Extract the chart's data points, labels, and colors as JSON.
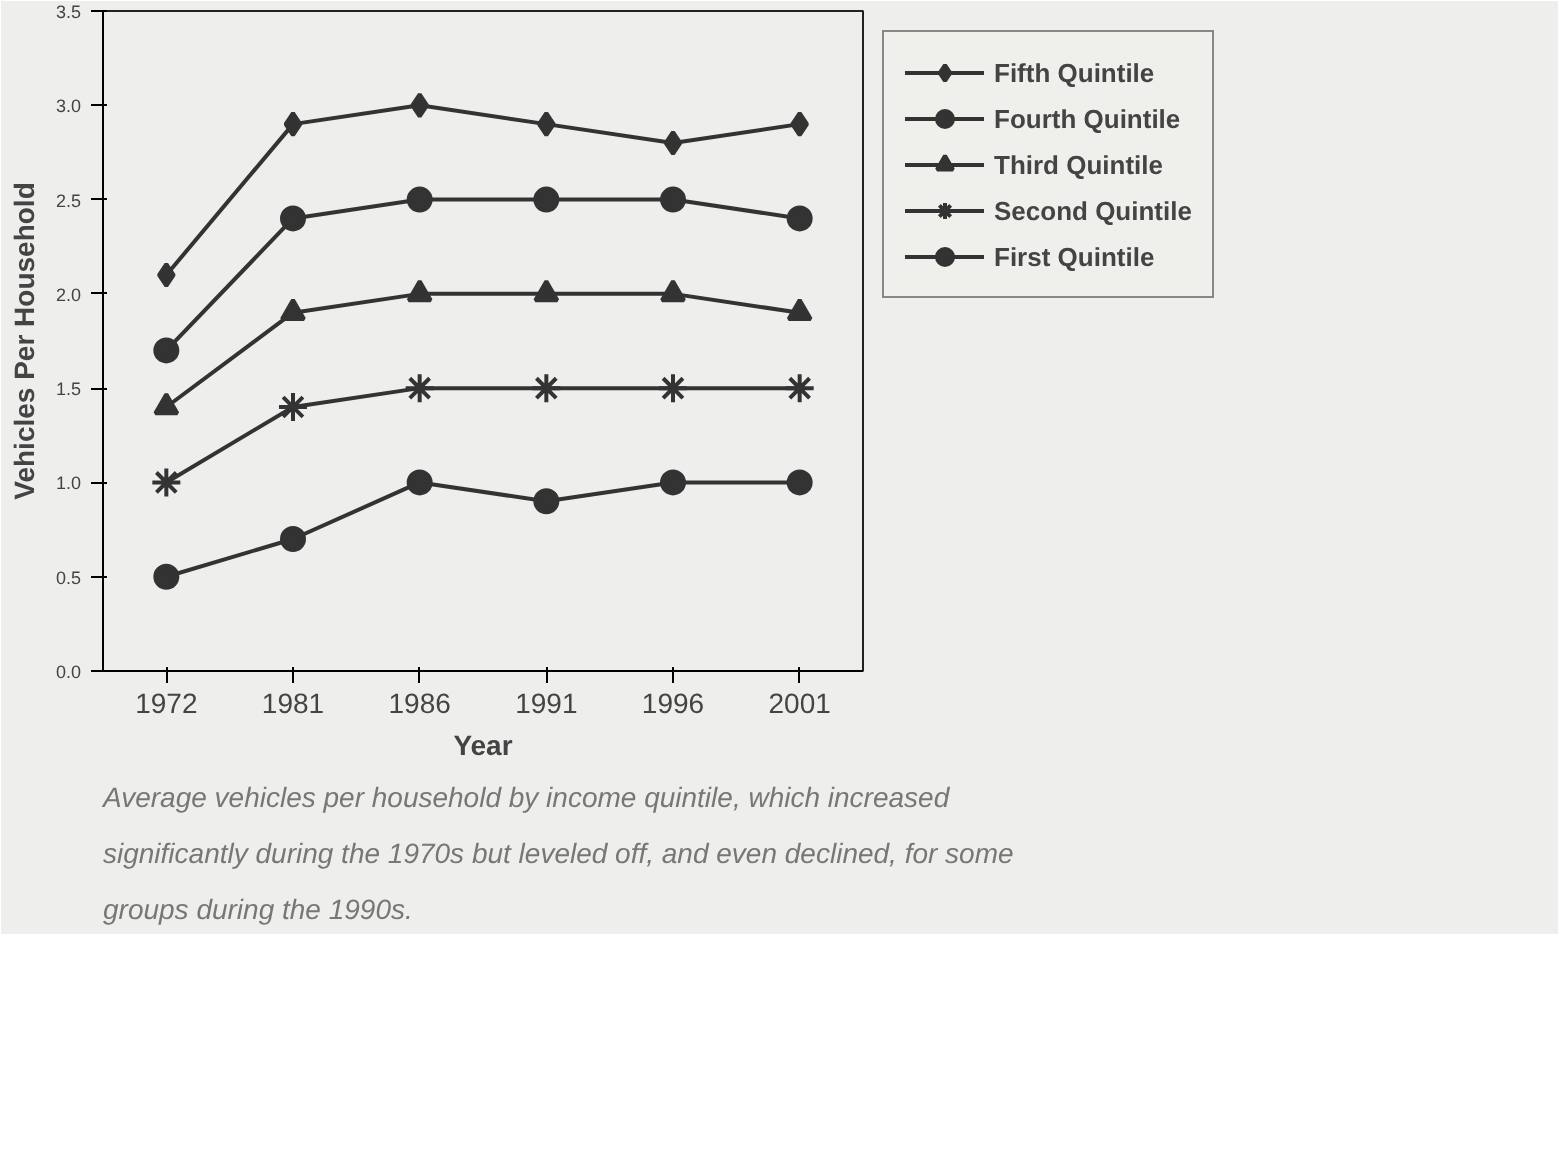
{
  "chart_data": {
    "type": "line",
    "xlabel": "Year",
    "ylabel": "Vehicles Per Household",
    "categories": [
      "1972",
      "1981",
      "1986",
      "1991",
      "1996",
      "2001"
    ],
    "ylim": [
      0,
      3.5
    ],
    "yticks": [
      {
        "value": 0,
        "label": "0.0"
      },
      {
        "value": 0.5,
        "label": "0.5"
      },
      {
        "value": 1,
        "label": "1.0"
      },
      {
        "value": 1.5,
        "label": "1.5"
      },
      {
        "value": 2,
        "label": "2.0"
      },
      {
        "value": 2.5,
        "label": "2.5"
      },
      {
        "value": 3,
        "label": "3.0"
      },
      {
        "value": 3.5,
        "label": "3.5"
      }
    ],
    "series": [
      {
        "name": "Fifth Quintile",
        "color": "#333333",
        "marker": "diamond",
        "values": [
          2.1,
          2.9,
          3.0,
          2.9,
          2.8,
          2.9
        ]
      },
      {
        "name": "Fourth Quintile",
        "color": "#333333",
        "marker": "circle",
        "values": [
          1.7,
          2.4,
          2.5,
          2.5,
          2.5,
          2.4
        ]
      },
      {
        "name": "Third Quintile",
        "color": "#333333",
        "marker": "triangle",
        "values": [
          1.4,
          1.9,
          2.0,
          2.0,
          2.0,
          1.9
        ]
      },
      {
        "name": "Second Quintile",
        "color": "#333333",
        "marker": "cross",
        "values": [
          1.0,
          1.4,
          1.5,
          1.5,
          1.5,
          1.5
        ]
      },
      {
        "name": "First Quintile",
        "color": "#333333",
        "marker": "circle",
        "values": [
          0.5,
          0.7,
          1.0,
          0.9,
          1.0,
          1.0
        ]
      }
    ],
    "grid": false,
    "legend": "top right",
    "line_style": "solid",
    "annotations": [
      "Average vehicles per household by income quintile, which increased significantly during the 1970s but leveled off, and even declined, for some groups during the 1990s."
    ]
  }
}
